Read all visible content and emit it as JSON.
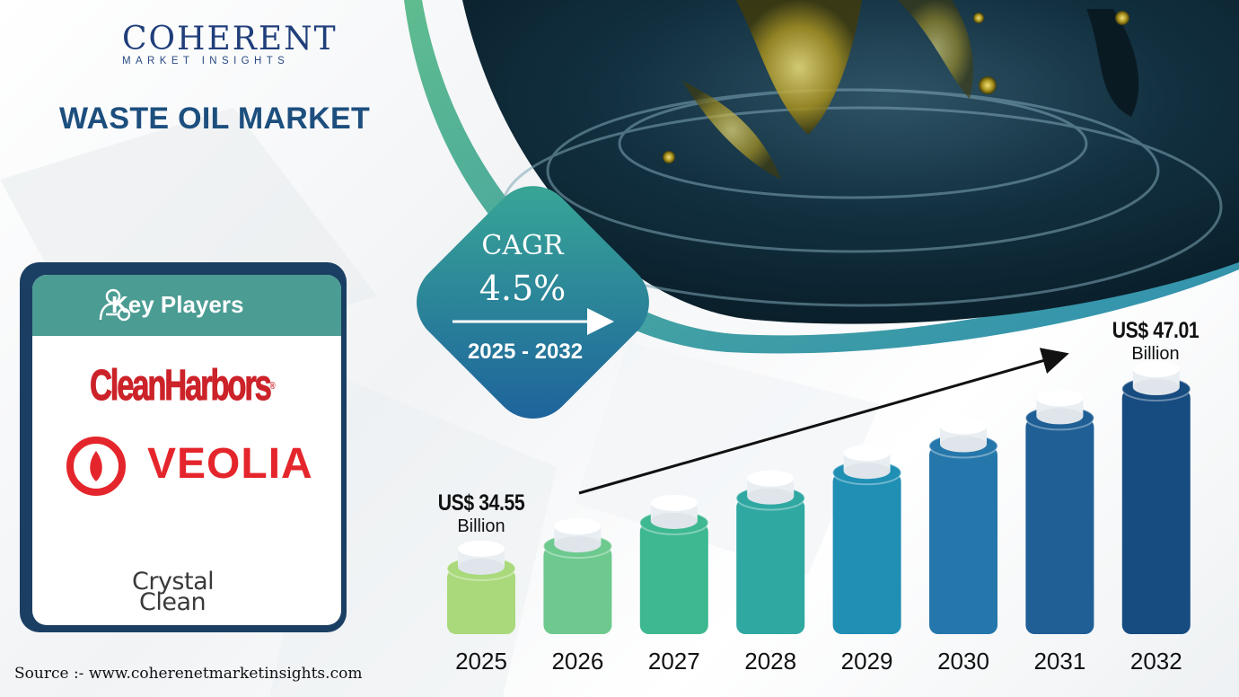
{
  "logo": {
    "main": "COHERENT",
    "sub": "MARKET INSIGHTS"
  },
  "title": "WASTE OIL MARKET",
  "key_players": {
    "title": "Key Players",
    "players": [
      "CleanHarbors",
      "VEOLIA",
      "Crystal",
      "Clean"
    ]
  },
  "cagr": {
    "label": "CAGR",
    "value": "4.5%",
    "period": "2025 - 2032"
  },
  "start_label": {
    "value": "US$ 34.55",
    "unit": "Billion"
  },
  "end_label": {
    "value": "US$ 47.01",
    "unit": "Billion"
  },
  "source": "Source :-  www.coherenetmarketinsights.com",
  "chart_data": {
    "type": "bar",
    "categories": [
      "2025",
      "2026",
      "2027",
      "2028",
      "2029",
      "2030",
      "2031",
      "2032"
    ],
    "values": [
      34.55,
      36.1,
      37.73,
      39.43,
      41.2,
      43.05,
      44.99,
      47.01
    ],
    "annotations": [
      {
        "category": "2025",
        "text": "US$ 34.55 Billion"
      },
      {
        "category": "2032",
        "text": "US$ 47.01 Billion"
      }
    ],
    "colors": [
      "#a9d97b",
      "#6dc98e",
      "#3db891",
      "#2fa8a2",
      "#1f8fb4",
      "#2577ab",
      "#1f5f96",
      "#174c80"
    ]
  }
}
